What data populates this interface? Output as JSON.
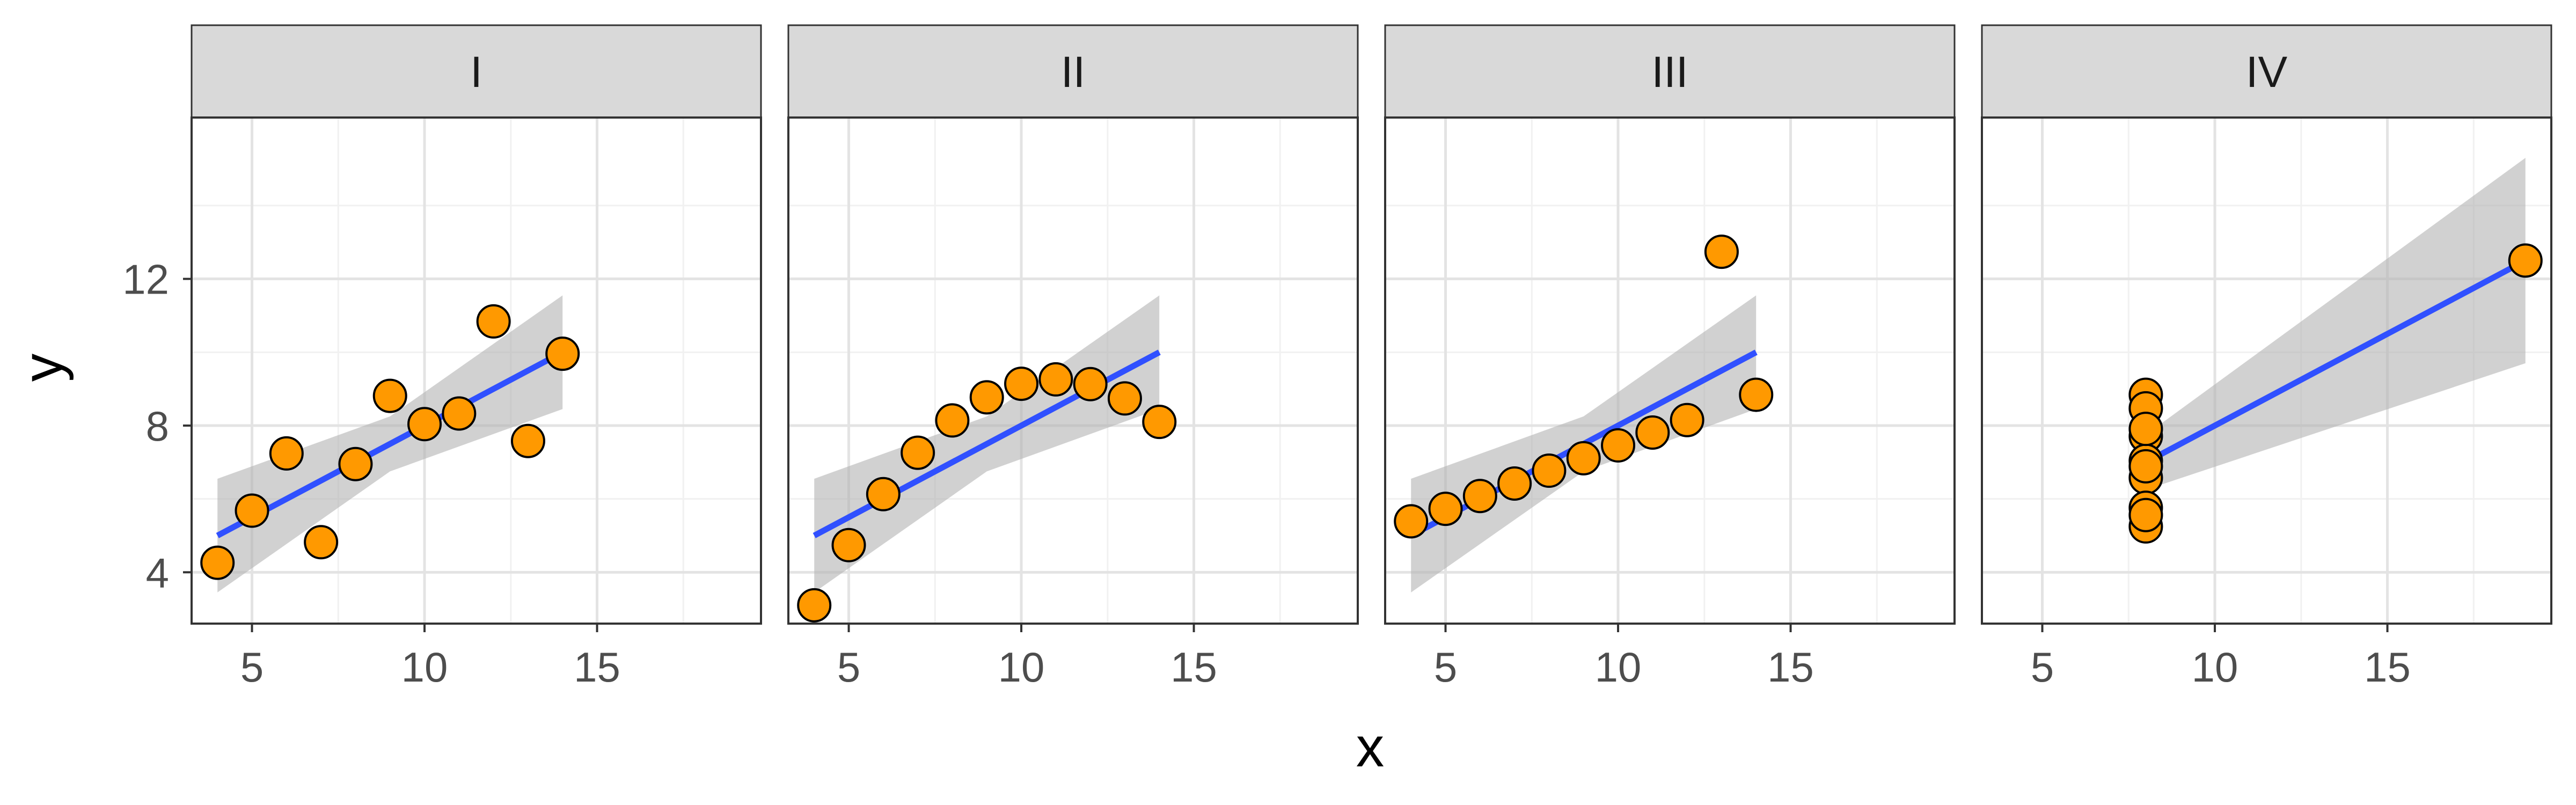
{
  "chart_data": {
    "type": "scatter",
    "xlabel": "x",
    "ylabel": "y",
    "xlim": [
      3.25,
      19.75
    ],
    "ylim": [
      2.6,
      16.4
    ],
    "x_ticks": [
      5,
      10,
      15
    ],
    "y_ticks": [
      4,
      8,
      12
    ],
    "grid": true,
    "legend": "none",
    "colors": {
      "point_fill": "#FF9900",
      "point_stroke": "#000000",
      "fit_line": "#3050FF",
      "ribbon": "#B3B3B3",
      "strip_fill": "#D9D9D9",
      "grid_major": "#E3E3E3",
      "grid_minor": "#F1F1F1",
      "panel_border": "#333333"
    },
    "panels": [
      {
        "label": "I",
        "points": [
          {
            "x": 10,
            "y": 8.04
          },
          {
            "x": 8,
            "y": 6.95
          },
          {
            "x": 13,
            "y": 7.58
          },
          {
            "x": 9,
            "y": 8.81
          },
          {
            "x": 11,
            "y": 8.33
          },
          {
            "x": 14,
            "y": 9.96
          },
          {
            "x": 6,
            "y": 7.24
          },
          {
            "x": 4,
            "y": 4.26
          },
          {
            "x": 12,
            "y": 10.84
          },
          {
            "x": 7,
            "y": 4.82
          },
          {
            "x": 5,
            "y": 5.68
          }
        ],
        "fit": {
          "intercept": 3.0,
          "slope": 0.5,
          "x_range": [
            4,
            14
          ]
        },
        "band": [
          {
            "x": 4,
            "lo": 3.45,
            "hi": 6.55
          },
          {
            "x": 9,
            "lo": 6.75,
            "hi": 8.25
          },
          {
            "x": 14,
            "lo": 8.45,
            "hi": 11.55
          }
        ]
      },
      {
        "label": "II",
        "points": [
          {
            "x": 10,
            "y": 9.14
          },
          {
            "x": 8,
            "y": 8.14
          },
          {
            "x": 13,
            "y": 8.74
          },
          {
            "x": 9,
            "y": 8.77
          },
          {
            "x": 11,
            "y": 9.26
          },
          {
            "x": 14,
            "y": 8.1
          },
          {
            "x": 6,
            "y": 6.13
          },
          {
            "x": 4,
            "y": 3.1
          },
          {
            "x": 12,
            "y": 9.13
          },
          {
            "x": 7,
            "y": 7.26
          },
          {
            "x": 5,
            "y": 4.74
          }
        ],
        "fit": {
          "intercept": 3.0,
          "slope": 0.5,
          "x_range": [
            4,
            14
          ]
        },
        "band": [
          {
            "x": 4,
            "lo": 3.45,
            "hi": 6.55
          },
          {
            "x": 9,
            "lo": 6.75,
            "hi": 8.25
          },
          {
            "x": 14,
            "lo": 8.45,
            "hi": 11.55
          }
        ]
      },
      {
        "label": "III",
        "points": [
          {
            "x": 10,
            "y": 7.46
          },
          {
            "x": 8,
            "y": 6.77
          },
          {
            "x": 13,
            "y": 12.74
          },
          {
            "x": 9,
            "y": 7.11
          },
          {
            "x": 11,
            "y": 7.81
          },
          {
            "x": 14,
            "y": 8.84
          },
          {
            "x": 6,
            "y": 6.08
          },
          {
            "x": 4,
            "y": 5.39
          },
          {
            "x": 12,
            "y": 8.15
          },
          {
            "x": 7,
            "y": 6.42
          },
          {
            "x": 5,
            "y": 5.73
          }
        ],
        "fit": {
          "intercept": 3.0,
          "slope": 0.5,
          "x_range": [
            4,
            14
          ]
        },
        "band": [
          {
            "x": 4,
            "lo": 3.45,
            "hi": 6.55
          },
          {
            "x": 9,
            "lo": 6.75,
            "hi": 8.25
          },
          {
            "x": 14,
            "lo": 8.45,
            "hi": 11.55
          }
        ]
      },
      {
        "label": "IV",
        "points": [
          {
            "x": 8,
            "y": 6.58
          },
          {
            "x": 8,
            "y": 5.76
          },
          {
            "x": 8,
            "y": 7.71
          },
          {
            "x": 8,
            "y": 8.84
          },
          {
            "x": 8,
            "y": 8.47
          },
          {
            "x": 8,
            "y": 7.04
          },
          {
            "x": 8,
            "y": 5.25
          },
          {
            "x": 19,
            "y": 12.5
          },
          {
            "x": 8,
            "y": 5.56
          },
          {
            "x": 8,
            "y": 7.91
          },
          {
            "x": 8,
            "y": 6.89
          }
        ],
        "fit": {
          "intercept": 3.0,
          "slope": 0.5,
          "x_range": [
            8,
            19
          ]
        },
        "band": [
          {
            "x": 8,
            "lo": 6.25,
            "hi": 7.75
          },
          {
            "x": 19,
            "lo": 9.7,
            "hi": 15.3
          }
        ]
      }
    ]
  }
}
